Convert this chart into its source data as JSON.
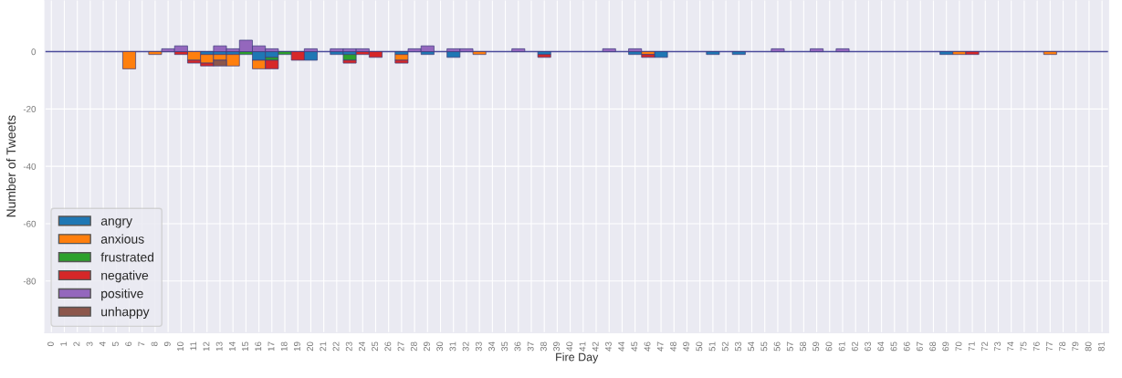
{
  "chart_data": {
    "type": "bar",
    "stacked": true,
    "xlabel": "Fire Day",
    "ylabel": "Number of Tweets",
    "categories": [
      "0",
      "1",
      "2",
      "3",
      "4",
      "5",
      "6",
      "7",
      "8",
      "9",
      "10",
      "11",
      "12",
      "13",
      "14",
      "15",
      "16",
      "17",
      "18",
      "19",
      "20",
      "21",
      "22",
      "23",
      "24",
      "25",
      "26",
      "27",
      "28",
      "29",
      "30",
      "31",
      "32",
      "33",
      "34",
      "35",
      "36",
      "37",
      "38",
      "39",
      "40",
      "41",
      "42",
      "43",
      "44",
      "45",
      "46",
      "47",
      "48",
      "49",
      "50",
      "51",
      "52",
      "53",
      "54",
      "55",
      "56",
      "57",
      "58",
      "59",
      "60",
      "61",
      "62",
      "63",
      "64",
      "65",
      "66",
      "67",
      "68",
      "69",
      "70",
      "71",
      "72",
      "73",
      "74",
      "75",
      "76",
      "77",
      "78",
      "79",
      "80",
      "81"
    ],
    "series": [
      {
        "name": "angry",
        "color": "#1f77b4",
        "values": [
          0,
          0,
          0,
          0,
          0,
          0,
          0,
          0,
          0,
          0,
          0,
          0,
          -1,
          -1,
          -1,
          0,
          -3,
          -2,
          0,
          0,
          -3,
          0,
          -1,
          -1,
          0,
          0,
          0,
          -1,
          0,
          -1,
          0,
          -2,
          0,
          0,
          0,
          0,
          0,
          0,
          -1,
          0,
          0,
          0,
          0,
          0,
          0,
          -1,
          0,
          -2,
          0,
          0,
          0,
          -1,
          0,
          -1,
          0,
          0,
          0,
          0,
          0,
          0,
          0,
          0,
          0,
          0,
          0,
          0,
          0,
          0,
          0,
          -1,
          0,
          0,
          0,
          0,
          0,
          0,
          0,
          0,
          0,
          0,
          0,
          0
        ]
      },
      {
        "name": "anxious",
        "color": "#ff7f0e",
        "values": [
          0,
          0,
          0,
          0,
          0,
          0,
          -6,
          0,
          -1,
          0,
          0,
          -3,
          -3,
          -2,
          -4,
          0,
          -3,
          0,
          0,
          0,
          0,
          0,
          0,
          0,
          0,
          0,
          0,
          -2,
          0,
          0,
          0,
          0,
          0,
          -1,
          0,
          0,
          0,
          0,
          0,
          0,
          0,
          0,
          0,
          0,
          0,
          0,
          -1,
          0,
          0,
          0,
          0,
          0,
          0,
          0,
          0,
          0,
          0,
          0,
          0,
          0,
          0,
          0,
          0,
          0,
          0,
          0,
          0,
          0,
          0,
          0,
          -1,
          0,
          0,
          0,
          0,
          0,
          0,
          -1,
          0,
          0,
          0,
          0
        ]
      },
      {
        "name": "frustrated",
        "color": "#2ca02c",
        "values": [
          0,
          0,
          0,
          0,
          0,
          0,
          0,
          0,
          0,
          0,
          0,
          0,
          0,
          0,
          0,
          -1,
          0,
          -1,
          -1,
          0,
          0,
          0,
          0,
          -2,
          0,
          0,
          0,
          0,
          0,
          0,
          0,
          0,
          0,
          0,
          0,
          0,
          0,
          0,
          0,
          0,
          0,
          0,
          0,
          0,
          0,
          0,
          0,
          0,
          0,
          0,
          0,
          0,
          0,
          0,
          0,
          0,
          0,
          0,
          0,
          0,
          0,
          0,
          0,
          0,
          0,
          0,
          0,
          0,
          0,
          0,
          0,
          0,
          0,
          0,
          0,
          0,
          0,
          0,
          0,
          0,
          0,
          0
        ]
      },
      {
        "name": "negative",
        "color": "#d62728",
        "values": [
          0,
          0,
          0,
          0,
          0,
          0,
          0,
          0,
          0,
          0,
          -1,
          -1,
          -1,
          0,
          0,
          0,
          0,
          -3,
          0,
          -3,
          0,
          0,
          0,
          -1,
          -1,
          -2,
          0,
          -1,
          0,
          0,
          0,
          0,
          0,
          0,
          0,
          0,
          0,
          0,
          -1,
          0,
          0,
          0,
          0,
          0,
          0,
          0,
          -1,
          0,
          0,
          0,
          0,
          0,
          0,
          0,
          0,
          0,
          0,
          0,
          0,
          0,
          0,
          0,
          0,
          0,
          0,
          0,
          0,
          0,
          0,
          0,
          0,
          -1,
          0,
          0,
          0,
          0,
          0,
          0,
          0,
          0,
          0,
          0
        ]
      },
      {
        "name": "positive",
        "color": "#9467bd",
        "values": [
          0,
          0,
          0,
          0,
          0,
          0,
          0,
          0,
          0,
          1,
          2,
          0,
          0,
          2,
          1,
          4,
          2,
          1,
          0,
          0,
          1,
          0,
          1,
          1,
          1,
          0,
          0,
          0,
          1,
          2,
          0,
          1,
          1,
          0,
          0,
          0,
          1,
          0,
          0,
          0,
          0,
          0,
          0,
          1,
          0,
          1,
          0,
          0,
          0,
          0,
          0,
          0,
          0,
          0,
          0,
          0,
          1,
          0,
          0,
          1,
          0,
          1,
          0,
          0,
          0,
          0,
          0,
          0,
          0,
          0,
          0,
          0,
          0,
          0,
          0,
          0,
          0,
          0,
          0,
          0,
          0,
          0
        ]
      },
      {
        "name": "unhappy",
        "color": "#8c564b",
        "values": [
          0,
          0,
          0,
          0,
          0,
          0,
          0,
          0,
          0,
          0,
          0,
          0,
          0,
          -2,
          0,
          0,
          0,
          0,
          0,
          0,
          0,
          0,
          0,
          0,
          0,
          0,
          0,
          0,
          0,
          0,
          0,
          0,
          0,
          0,
          0,
          0,
          0,
          0,
          0,
          0,
          0,
          0,
          0,
          0,
          0,
          0,
          0,
          0,
          0,
          0,
          0,
          0,
          0,
          0,
          0,
          0,
          0,
          0,
          0,
          0,
          0,
          0,
          0,
          0,
          0,
          0,
          0,
          0,
          0,
          0,
          0,
          0,
          0,
          0,
          0,
          0,
          0,
          0,
          0,
          0,
          0,
          0
        ]
      }
    ],
    "ref_lines": [
      {
        "axis": "y",
        "value": 0,
        "color": "#4b4b9b"
      }
    ],
    "ylim": [
      -98,
      18
    ],
    "yticks": [
      0,
      -20,
      -40,
      -60,
      -80
    ],
    "grid": true,
    "legend": "bottom left"
  }
}
